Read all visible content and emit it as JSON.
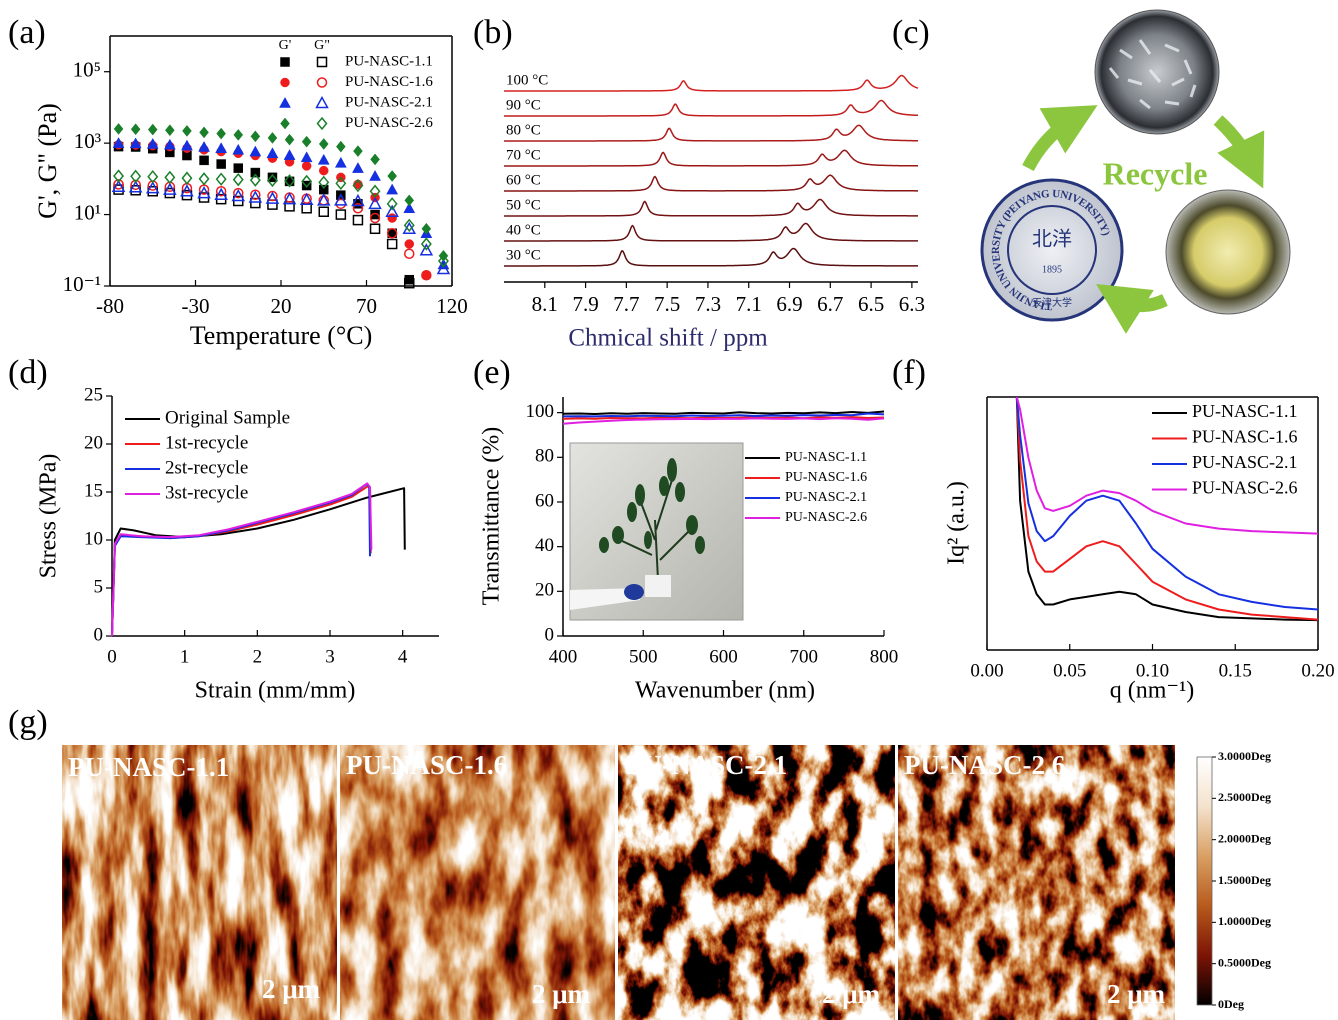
{
  "panel_labels": [
    "(a)",
    "(b)",
    "(c)",
    "(d)",
    "(e)",
    "(f)",
    "(g)"
  ],
  "chart_data": [
    {
      "type": "scatter",
      "y_label": "G', G\" (Pa)",
      "x_label": "Temperature (°C)",
      "log_y": true,
      "xlim": [
        -80,
        120
      ],
      "xticks": [
        -80,
        -30,
        20,
        70,
        120
      ],
      "ylim": [
        0.1,
        1000000
      ],
      "yticks": [
        {
          "value": 0.1,
          "label": "10⁻¹"
        },
        {
          "value": 10,
          "label": "10¹"
        },
        {
          "value": 1000,
          "label": "10³"
        },
        {
          "value": 100000,
          "label": "10⁵"
        }
      ],
      "legend": "upper right",
      "legend_columns": [
        "G'",
        "G\""
      ],
      "x": [
        -75,
        -65,
        -55,
        -45,
        -35,
        -25,
        -15,
        -5,
        5,
        15,
        25,
        35,
        45,
        55,
        65,
        75,
        85,
        95,
        105,
        115
      ],
      "series": [
        {
          "name": "PU-NASC-1.1",
          "color": "#000000",
          "marker": "square",
          "storage": [
            800,
            780,
            700,
            550,
            450,
            330,
            260,
            200,
            150,
            110,
            85,
            65,
            50,
            35,
            20,
            10,
            3,
            0.15,
            null,
            null
          ],
          "loss": [
            50,
            48,
            45,
            40,
            35,
            30,
            27,
            24,
            21,
            19,
            17,
            15,
            12,
            10,
            7,
            4,
            1.5,
            0.12,
            null,
            null
          ]
        },
        {
          "name": "PU-NASC-1.6",
          "color": "#ee1c1c",
          "marker": "circle",
          "storage": [
            900,
            880,
            850,
            800,
            720,
            650,
            580,
            520,
            450,
            380,
            300,
            230,
            170,
            110,
            70,
            30,
            8,
            1.5,
            0.2,
            null
          ],
          "loss": [
            70,
            68,
            65,
            60,
            55,
            50,
            45,
            40,
            36,
            33,
            30,
            28,
            25,
            20,
            15,
            8,
            3,
            0.8,
            0.2,
            null
          ]
        },
        {
          "name": "PU-NASC-2.1",
          "color": "#1530e0",
          "marker": "triangle",
          "storage": [
            1000,
            980,
            950,
            900,
            850,
            780,
            720,
            650,
            580,
            520,
            460,
            400,
            340,
            280,
            200,
            120,
            50,
            15,
            3,
            0.4
          ],
          "loss": [
            60,
            58,
            55,
            50,
            45,
            40,
            36,
            33,
            30,
            28,
            27,
            26,
            25,
            25,
            24,
            20,
            12,
            4,
            1,
            0.3
          ]
        },
        {
          "name": "PU-NASC-2.6",
          "color": "#1a7f2a",
          "marker": "diamond",
          "storage": [
            2500,
            2450,
            2400,
            2300,
            2200,
            2000,
            1850,
            1700,
            1550,
            1400,
            1250,
            1100,
            950,
            800,
            600,
            350,
            120,
            25,
            4,
            0.7
          ],
          "loss": [
            120,
            118,
            115,
            110,
            105,
            100,
            98,
            95,
            92,
            90,
            88,
            85,
            80,
            75,
            65,
            45,
            20,
            5,
            1.5,
            0.5
          ]
        }
      ]
    },
    {
      "type": "spectra",
      "x_label": "Chmical shift / ppm",
      "x_label_color": "#2d2d6e",
      "xlim": [
        8.3,
        6.27
      ],
      "xticks": [
        8.1,
        7.9,
        7.7,
        7.5,
        7.3,
        7.1,
        6.9,
        6.7,
        6.5,
        6.3
      ],
      "series": [
        {
          "name": "100 °C",
          "color": "#d42020",
          "peaks": [
            7.42,
            6.52,
            6.35
          ],
          "intensities": [
            0.6,
            0.6,
            0.9
          ]
        },
        {
          "name": "90 °C",
          "color": "#c11d1d",
          "peaks": [
            7.46,
            6.6,
            6.45
          ],
          "intensities": [
            0.7,
            0.6,
            0.9
          ]
        },
        {
          "name": "80 °C",
          "color": "#ad1a1a",
          "peaks": [
            7.49,
            6.67,
            6.56
          ],
          "intensities": [
            0.75,
            0.6,
            0.9
          ]
        },
        {
          "name": "70 °C",
          "color": "#9a1717",
          "peaks": [
            7.52,
            6.74,
            6.63
          ],
          "intensities": [
            0.8,
            0.6,
            0.9
          ]
        },
        {
          "name": "60 °C",
          "color": "#861414",
          "peaks": [
            7.56,
            6.8,
            6.7
          ],
          "intensities": [
            0.85,
            0.6,
            0.9
          ]
        },
        {
          "name": "50 °C",
          "color": "#731212",
          "peaks": [
            7.61,
            6.86,
            6.75
          ],
          "intensities": [
            0.85,
            0.65,
            0.95
          ]
        },
        {
          "name": "40 °C",
          "color": "#651010",
          "peaks": [
            7.67,
            6.92,
            6.82
          ],
          "intensities": [
            0.9,
            0.7,
            1.0
          ]
        },
        {
          "name": "30 °C",
          "color": "#5a0f0f",
          "peaks": [
            7.72,
            6.98,
            6.88
          ],
          "intensities": [
            0.9,
            0.7,
            1.0
          ]
        }
      ]
    },
    {
      "type": "line",
      "x_label": "Strain (mm/mm)",
      "y_label": "Stress (MPa)",
      "xlim": [
        0,
        4.5
      ],
      "xticks": [
        0,
        1,
        2,
        3,
        4
      ],
      "ylim": [
        0,
        25
      ],
      "yticks": [
        0,
        5,
        10,
        15,
        20,
        25
      ],
      "legend": "upper left",
      "series": [
        {
          "name": "Original Sample",
          "color": "#000000",
          "x": [
            0,
            0.04,
            0.12,
            0.3,
            0.6,
            1,
            1.5,
            2,
            2.5,
            3,
            3.5,
            4.02,
            4.03
          ],
          "values": [
            0,
            10,
            11.2,
            11,
            10.5,
            10.3,
            10.6,
            11.2,
            12.1,
            13.2,
            14.4,
            15.4,
            9
          ]
        },
        {
          "name": "1st-recycle",
          "color": "#ee1c1c",
          "x": [
            0,
            0.04,
            0.12,
            0.4,
            0.8,
            1.2,
            1.6,
            2,
            2.5,
            3,
            3.3,
            3.52,
            3.55,
            3.56
          ],
          "values": [
            0,
            9.5,
            10.5,
            10.4,
            10.2,
            10.4,
            10.9,
            11.6,
            12.6,
            13.7,
            14.5,
            15.6,
            15.4,
            8.6
          ]
        },
        {
          "name": "2st-recycle",
          "color": "#1530e0",
          "x": [
            0,
            0.04,
            0.12,
            0.4,
            0.8,
            1.2,
            1.6,
            2,
            2.5,
            3,
            3.3,
            3.5,
            3.54,
            3.55
          ],
          "values": [
            0,
            9.4,
            10.4,
            10.3,
            10.2,
            10.4,
            11,
            11.8,
            12.8,
            13.9,
            14.7,
            15.8,
            15.6,
            8.3
          ]
        },
        {
          "name": "3st-recycle",
          "color": "#e020e0",
          "x": [
            0,
            0.04,
            0.12,
            0.4,
            0.8,
            1.2,
            1.6,
            2,
            2.5,
            3,
            3.3,
            3.51,
            3.55,
            3.57
          ],
          "values": [
            0,
            9.6,
            10.6,
            10.4,
            10.3,
            10.5,
            11.1,
            11.9,
            12.9,
            14,
            14.8,
            15.9,
            15.5,
            9
          ]
        }
      ]
    },
    {
      "type": "line",
      "x_label": "Wavenumber (nm)",
      "y_label": "Transmittance (%)",
      "xlim": [
        400,
        800
      ],
      "xticks": [
        400,
        500,
        600,
        700,
        800
      ],
      "ylim": [
        0,
        107
      ],
      "yticks": [
        0,
        20,
        40,
        60,
        80,
        100
      ],
      "legend": "center right",
      "x": [
        400,
        420,
        440,
        460,
        480,
        500,
        520,
        540,
        560,
        580,
        600,
        620,
        640,
        660,
        680,
        700,
        720,
        740,
        760,
        780,
        800
      ],
      "series": [
        {
          "name": "PU-NASC-1.1",
          "color": "#000000",
          "values": [
            99.5,
            99.6,
            99.4,
            99.7,
            99.5,
            99.8,
            99.6,
            99.5,
            99.9,
            99.7,
            99.6,
            100.2,
            99.8,
            99.6,
            99.9,
            99.7,
            100.1,
            99.8,
            100.3,
            99.9,
            100.5
          ]
        },
        {
          "name": "PU-NASC-1.6",
          "color": "#ee1c1c",
          "values": [
            97.2,
            97.4,
            97.3,
            97.6,
            97.5,
            97.4,
            97.7,
            97.6,
            97.5,
            97.8,
            97.6,
            97.7,
            97.9,
            97.6,
            97.8,
            97.5,
            97.9,
            97.7,
            98.0,
            97.6,
            97.8
          ]
        },
        {
          "name": "PU-NASC-2.1",
          "color": "#1530e0",
          "values": [
            98.3,
            98.4,
            98.3,
            98.5,
            98.4,
            98.6,
            98.5,
            98.4,
            98.7,
            98.5,
            98.6,
            98.8,
            98.5,
            98.7,
            98.6,
            98.9,
            98.7,
            99.0,
            98.8,
            99.6,
            99.2
          ]
        },
        {
          "name": "PU-NASC-2.6",
          "color": "#e020e0",
          "values": [
            95.0,
            95.6,
            96.0,
            96.4,
            96.7,
            96.9,
            97.0,
            97.1,
            97.2,
            97.1,
            97.3,
            97.2,
            97.4,
            97.3,
            97.2,
            97.4,
            97.1,
            97.5,
            97.3,
            96.8,
            97.4
          ]
        }
      ]
    },
    {
      "type": "line",
      "x_label": "q (nm⁻¹)",
      "y_label": "Iq² (a.u.)",
      "xlim": [
        0,
        0.2
      ],
      "xticks": [
        {
          "value": 0,
          "label": "0.00"
        },
        0.05,
        {
          "value": 0.1,
          "label": "0.10"
        },
        0.15,
        {
          "value": 0.2,
          "label": "0.20"
        }
      ],
      "ylim": [
        0,
        10
      ],
      "legend": "upper right",
      "x": [
        0.018,
        0.02,
        0.025,
        0.03,
        0.035,
        0.04,
        0.05,
        0.06,
        0.07,
        0.08,
        0.09,
        0.1,
        0.12,
        0.14,
        0.16,
        0.18,
        0.2
      ],
      "series": [
        {
          "name": "PU-NASC-1.1",
          "color": "#000000",
          "values": [
            10,
            5.9,
            3.1,
            2.2,
            1.8,
            1.8,
            2.0,
            2.1,
            2.2,
            2.3,
            2.2,
            1.8,
            1.5,
            1.3,
            1.25,
            1.2,
            1.18
          ]
        },
        {
          "name": "PU-NASC-1.6",
          "color": "#ee1c1c",
          "values": [
            10,
            7.5,
            4.5,
            3.5,
            3.1,
            3.1,
            3.6,
            4.1,
            4.3,
            4.1,
            3.4,
            2.7,
            2.0,
            1.6,
            1.4,
            1.3,
            1.2
          ]
        },
        {
          "name": "PU-NASC-2.1",
          "color": "#1530e0",
          "values": [
            10,
            8.5,
            5.8,
            4.7,
            4.3,
            4.5,
            5.3,
            5.9,
            6.1,
            5.9,
            5.0,
            4.0,
            2.9,
            2.2,
            1.9,
            1.7,
            1.6
          ]
        },
        {
          "name": "PU-NASC-2.6",
          "color": "#e020e0",
          "values": [
            10,
            9.5,
            7.6,
            6.3,
            5.6,
            5.5,
            5.7,
            6.1,
            6.3,
            6.2,
            5.9,
            5.5,
            5.0,
            4.8,
            4.7,
            4.65,
            4.6
          ]
        }
      ]
    },
    {
      "type": "colorbar",
      "colors": [
        "#000000",
        "#7d1405",
        "#b85a1c",
        "#d9a064",
        "#f4e2cc",
        "#ffffff"
      ],
      "ylim": [
        0,
        3
      ],
      "yticks": [
        {
          "value": 0,
          "label": "0Deg"
        },
        {
          "value": 0.5,
          "label": "0.5000Deg"
        },
        {
          "value": 1,
          "label": "1.0000Deg"
        },
        {
          "value": 1.5,
          "label": "1.5000Deg"
        },
        {
          "value": 2,
          "label": "2.0000Deg"
        },
        {
          "value": 2.5,
          "label": "2.5000Deg"
        },
        {
          "value": 3,
          "label": "3.0000Deg"
        }
      ]
    }
  ],
  "diagram": {
    "label": "Recycle",
    "seal_ring": "TIANJIN UNIVERSITY (PEIYANG UNIVERSITY)",
    "seal_center": "北洋",
    "seal_year": "1895",
    "seal_bottom": "天津大学"
  },
  "afm": {
    "images": [
      {
        "label": "PU-NASC-1.1",
        "scale_bar": "2 μm"
      },
      {
        "label": "PU-NASC-1.6",
        "scale_bar": "2 μm"
      },
      {
        "label": "PU-NASC-2.1",
        "scale_bar": "2 μm"
      },
      {
        "label": "PU-NASC-2.6",
        "scale_bar": "2 μm"
      }
    ]
  }
}
